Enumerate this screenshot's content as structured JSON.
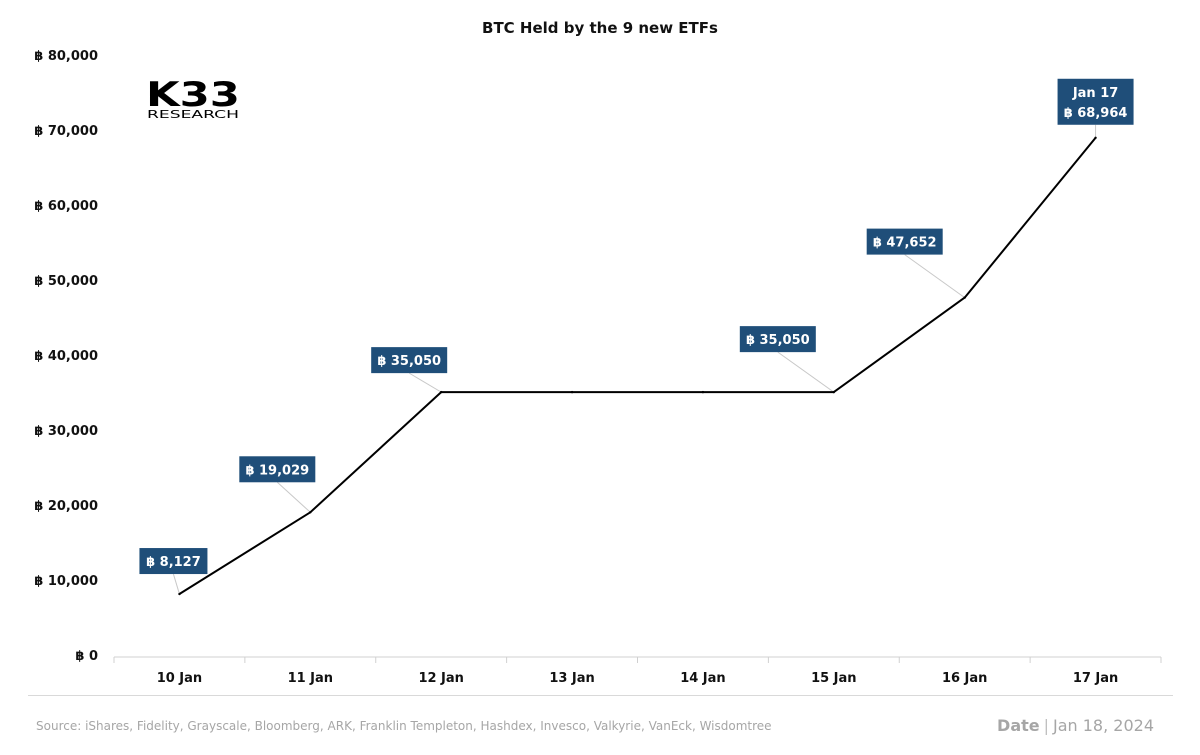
{
  "chart_data": {
    "type": "line",
    "title": "BTC Held by the 9 new ETFs",
    "currency_symbol": "฿",
    "categories": [
      "10 Jan",
      "11 Jan",
      "12 Jan",
      "13 Jan",
      "14 Jan",
      "15 Jan",
      "16 Jan",
      "17 Jan"
    ],
    "values": [
      8127,
      19029,
      35050,
      35050,
      35050,
      35050,
      47652,
      68964
    ],
    "ylim": [
      0,
      80000
    ],
    "yticks": [
      0,
      10000,
      20000,
      30000,
      40000,
      50000,
      60000,
      70000,
      80000
    ],
    "ytick_labels": [
      "฿ 0",
      "฿ 10,000",
      "฿ 20,000",
      "฿ 30,000",
      "฿ 40,000",
      "฿ 50,000",
      "฿ 60,000",
      "฿ 70,000",
      "฿ 80,000"
    ],
    "line_color": "#000000",
    "annotations": [
      {
        "category": "10 Jan",
        "text": "฿ 8,127"
      },
      {
        "category": "11 Jan",
        "text": "฿ 19,029"
      },
      {
        "category": "12 Jan",
        "text": "฿ 35,050"
      },
      {
        "category": "15 Jan",
        "text": "฿ 35,050"
      },
      {
        "category": "16 Jan",
        "text": "฿ 47,652"
      },
      {
        "category": "17 Jan",
        "lines": [
          "Jan 17",
          "฿ 68,964"
        ]
      }
    ],
    "annotation_color": "#1f4e79",
    "grid": false,
    "legend": "none"
  },
  "logo": {
    "main": "K33",
    "sub": "RESEARCH"
  },
  "footer": {
    "source": "Source:  iShares, Fidelity, Grayscale, Bloomberg, ARK, Franklin Templeton, Hashdex, Invesco, Valkyrie, VanEck, Wisdomtree",
    "date_label": "Date",
    "separator": "|",
    "date_value": "Jan 18, 2024"
  }
}
